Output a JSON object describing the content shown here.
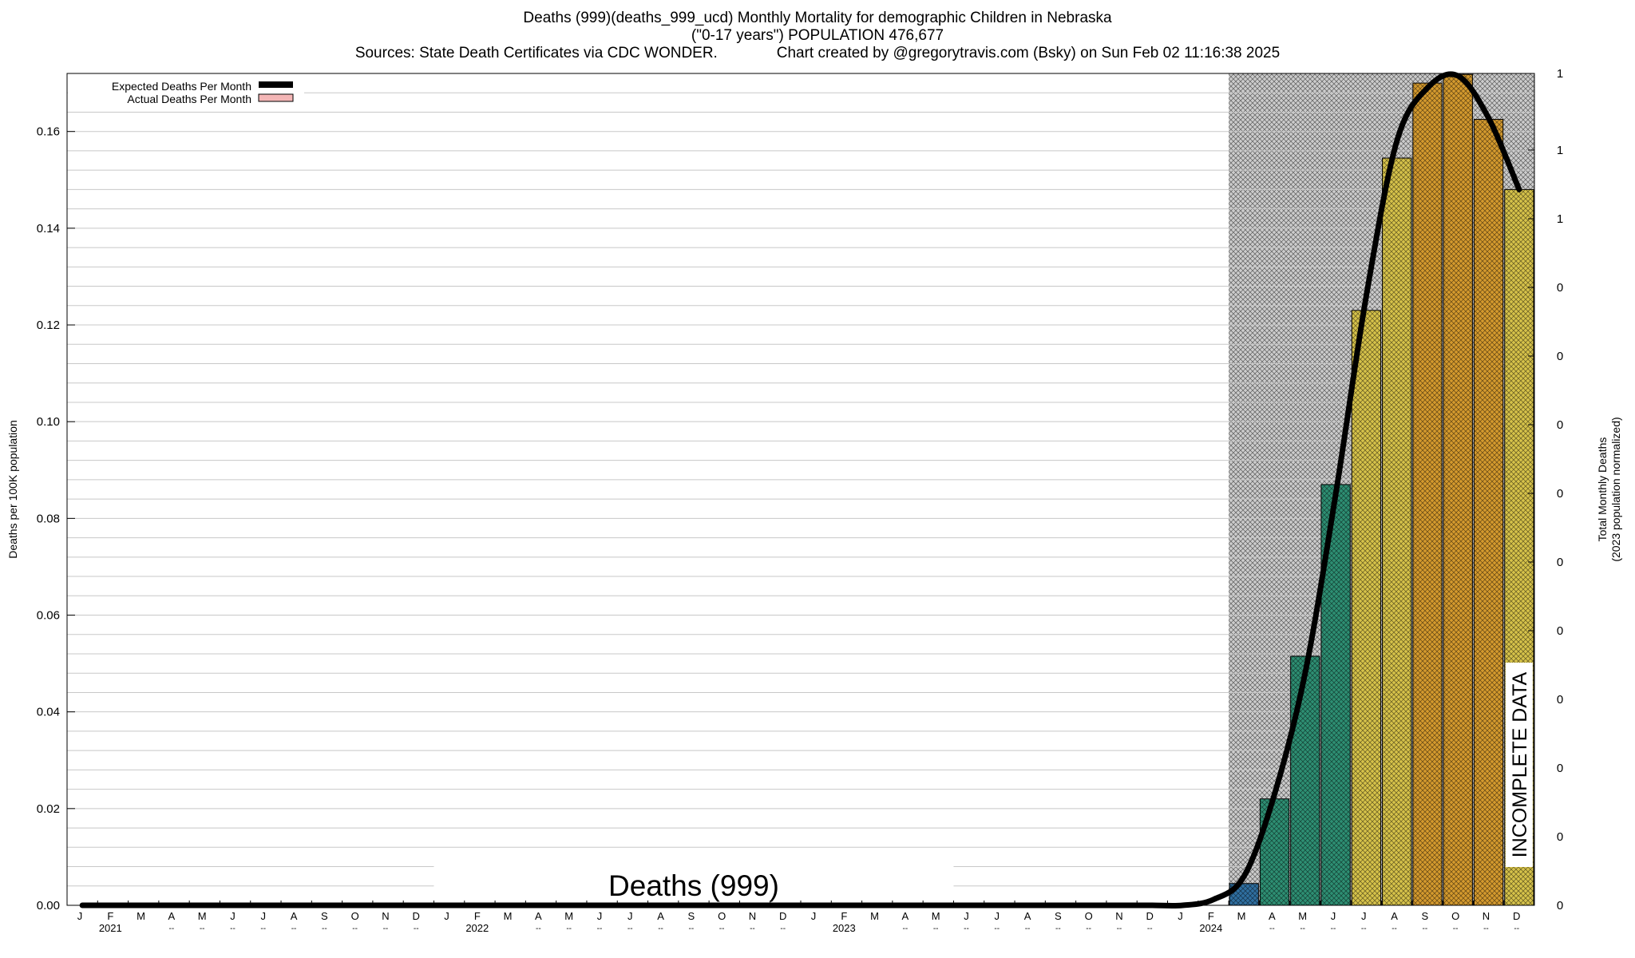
{
  "titles": {
    "line1": "Deaths (999)(deaths_999_ucd) Monthly Mortality for demographic Children in Nebraska",
    "line2": "(\"0-17 years\") POPULATION 476,677",
    "line3": "Sources: State Death Certificates via CDC WONDER.              Chart created by @gregorytravis.com (Bsky) on Sun Feb 02 11:16:38 2025"
  },
  "colors": {
    "expected_line": "#000000",
    "actual_legend": "#f4b6b6",
    "incomplete_fill": "#cccccc",
    "bar_palette_low": "#2f6fa0",
    "bar_palette_mid": "#2e8f73",
    "bar_palette_high": "#d6c24a",
    "bar_palette_top": "#d49a2e"
  },
  "chart_data": {
    "type": "bar",
    "title": "Deaths (999)(deaths_999_ucd) Monthly Mortality for demographic Children in Nebraska",
    "ylabel": "Deaths per 100K population",
    "y2label_line1": "Total Monthly Deaths",
    "y2label_line2": "(2023 population normalized)",
    "watermark": "Deaths (999)",
    "incomplete_label": "INCOMPLETE DATA",
    "ylim": [
      0,
      0.172
    ],
    "yticks": [
      "0.00",
      "0.02",
      "0.04",
      "0.06",
      "0.08",
      "0.10",
      "0.12",
      "0.14",
      "0.16"
    ],
    "y2ticks": [
      "0",
      "0",
      "0",
      "0",
      "0",
      "0",
      "0",
      "0",
      "0",
      "0",
      "1",
      "1",
      "1"
    ],
    "grid": true,
    "legend_position": "top-left",
    "legend": [
      {
        "name": "Expected Deaths Per Month",
        "style": "line"
      },
      {
        "name": "Actual Deaths Per Month",
        "style": "box"
      }
    ],
    "month_labels": [
      "J",
      "F",
      "M",
      "A",
      "M",
      "J",
      "J",
      "A",
      "S",
      "O",
      "N",
      "D",
      "J",
      "F",
      "M",
      "A",
      "M",
      "J",
      "J",
      "A",
      "S",
      "O",
      "N",
      "D",
      "J",
      "F",
      "M",
      "A",
      "M",
      "J",
      "J",
      "A",
      "S",
      "O",
      "N",
      "D",
      "J",
      "F",
      "M",
      "A",
      "M",
      "J",
      "J",
      "A",
      "S",
      "O",
      "N",
      "D"
    ],
    "year_labels": [
      {
        "index": 1,
        "text": "2021"
      },
      {
        "index": 13,
        "text": "2022"
      },
      {
        "index": 25,
        "text": "2023"
      },
      {
        "index": 37,
        "text": "2024"
      }
    ],
    "sub_labels": [
      "",
      "",
      "",
      "--",
      "--",
      "--",
      "--",
      "--",
      "--",
      "--",
      "--",
      "--",
      "",
      "",
      "",
      "--",
      "--",
      "--",
      "--",
      "--",
      "--",
      "--",
      "--",
      "--",
      "",
      "",
      "",
      "--",
      "--",
      "--",
      "--",
      "--",
      "--",
      "--",
      "--",
      "--",
      "",
      "",
      "",
      "--",
      "--",
      "--",
      "--",
      "--",
      "--",
      "--",
      "--",
      "--"
    ],
    "incomplete_start_index": 38,
    "series": [
      {
        "name": "Actual Deaths Per Month",
        "values": [
          0,
          0,
          0,
          0,
          0,
          0,
          0,
          0,
          0,
          0,
          0,
          0,
          0,
          0,
          0,
          0,
          0,
          0,
          0,
          0,
          0,
          0,
          0,
          0,
          0,
          0,
          0,
          0,
          0,
          0,
          0,
          0,
          0,
          0,
          0,
          0,
          0,
          0,
          0.0045,
          0.022,
          0.0515,
          0.087,
          0.123,
          0.1545,
          0.17,
          0.1718,
          0.1625,
          0.148
        ]
      },
      {
        "name": "Expected Deaths Per Month",
        "values": [
          0,
          0,
          0,
          0,
          0,
          0,
          0,
          0,
          0,
          0,
          0,
          0,
          0,
          0,
          0,
          0,
          0,
          0,
          0,
          0,
          0,
          0,
          0,
          0,
          0,
          0,
          0,
          0,
          0,
          0,
          0,
          0,
          0,
          0,
          0,
          0,
          0,
          0.0012,
          0.006,
          0.023,
          0.048,
          0.085,
          0.126,
          0.158,
          0.169,
          0.1715,
          0.1628,
          0.148
        ]
      }
    ]
  }
}
